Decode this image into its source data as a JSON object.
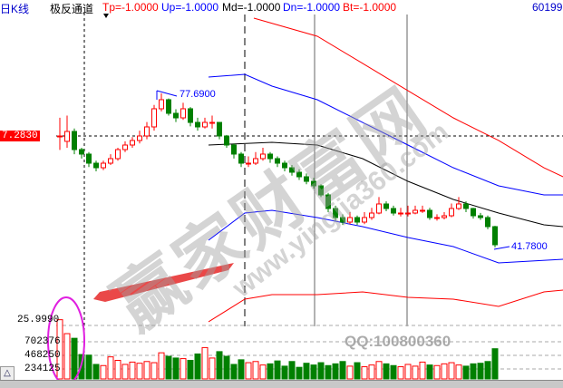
{
  "header": {
    "left_label": "日K线",
    "indicator": "极反通道",
    "tp": "Tp=-1.0000",
    "up": "Up=-1.0000",
    "md": "Md=-1.0000",
    "dn": "Dn=-1.0000",
    "bt": "Bt=-1.0000",
    "code": "60199"
  },
  "colors": {
    "tp": "#ff0000",
    "up": "#0000ff",
    "md": "#000000",
    "dn": "#0000ff",
    "bt": "#ff0000",
    "up_candle": "#ff0000",
    "down_candle": "#008000"
  },
  "price_axis": {
    "cursor_price": "7.2830",
    "bottom_price": "25.9990"
  },
  "annotations": {
    "high": "77.6900",
    "low": "41.7800"
  },
  "volume_axis": {
    "ticks": [
      "702376",
      "468250",
      "234125"
    ]
  },
  "watermark": {
    "brand": "赢家财富网",
    "site": "www.yingjia360.com",
    "qq": "QQ:100800360"
  },
  "toolbar": {
    "toggle_icon": "triangle-up-icon",
    "toggle_label": "△"
  },
  "chart_data": {
    "type": "candlestick",
    "candles": [
      [
        67.75,
        67.75,
        72.0,
        64.5
      ],
      [
        66.5,
        68.81,
        72.5,
        65.0
      ],
      [
        68.81,
        64.58,
        69.5,
        63.5
      ],
      [
        64.58,
        63.53,
        65.0,
        62.5
      ],
      [
        63.53,
        61.41,
        64.0,
        60.5
      ],
      [
        61.41,
        60.35,
        62.0,
        59.5
      ],
      [
        60.35,
        61.41,
        62.0,
        59.8
      ],
      [
        61.41,
        62.47,
        63.5,
        61.0
      ],
      [
        62.47,
        64.58,
        65.0,
        62.0
      ],
      [
        64.58,
        65.64,
        66.5,
        64.0
      ],
      [
        65.64,
        66.7,
        67.5,
        65.0
      ],
      [
        66.7,
        67.75,
        69.0,
        66.0
      ],
      [
        67.75,
        69.87,
        71.0,
        67.0
      ],
      [
        69.87,
        74.1,
        75.0,
        69.0
      ],
      [
        74.1,
        76.21,
        77.69,
        73.5
      ],
      [
        76.21,
        73.04,
        76.5,
        72.5
      ],
      [
        73.04,
        71.98,
        74.0,
        71.0
      ],
      [
        71.98,
        74.1,
        75.5,
        71.5
      ],
      [
        74.1,
        70.92,
        74.5,
        70.0
      ],
      [
        70.92,
        69.87,
        72.0,
        69.0
      ],
      [
        69.87,
        70.92,
        72.0,
        69.5
      ],
      [
        70.92,
        70.92,
        72.5,
        69.5
      ],
      [
        70.92,
        67.75,
        71.0,
        67.0
      ],
      [
        67.75,
        65.64,
        68.0,
        65.0
      ],
      [
        65.64,
        63.53,
        66.0,
        62.5
      ],
      [
        63.53,
        61.41,
        64.0,
        60.5
      ],
      [
        61.41,
        61.41,
        63.0,
        60.5
      ],
      [
        61.41,
        62.47,
        64.0,
        61.0
      ],
      [
        62.47,
        63.53,
        65.0,
        62.0
      ],
      [
        63.53,
        62.47,
        64.0,
        61.5
      ],
      [
        62.47,
        61.41,
        63.0,
        60.5
      ],
      [
        61.41,
        60.35,
        62.0,
        59.5
      ],
      [
        60.35,
        59.3,
        61.0,
        58.5
      ],
      [
        59.3,
        58.24,
        60.0,
        57.5
      ],
      [
        58.24,
        57.18,
        59.0,
        56.5
      ],
      [
        57.18,
        56.13,
        58.0,
        55.5
      ],
      [
        56.13,
        54.01,
        56.5,
        53.5
      ],
      [
        54.01,
        50.84,
        54.5,
        50.0
      ],
      [
        50.84,
        48.73,
        51.5,
        48.0
      ],
      [
        48.73,
        47.67,
        49.5,
        47.0
      ],
      [
        47.67,
        48.73,
        50.0,
        47.2
      ],
      [
        48.73,
        47.67,
        49.2,
        47.0
      ],
      [
        47.67,
        48.73,
        50.0,
        47.2
      ],
      [
        48.73,
        49.78,
        51.0,
        48.2
      ],
      [
        49.78,
        51.9,
        53.5,
        49.5
      ],
      [
        51.9,
        50.84,
        52.5,
        50.2
      ],
      [
        50.84,
        49.78,
        51.5,
        49.2
      ],
      [
        49.78,
        49.78,
        51.0,
        49.0
      ],
      [
        49.78,
        49.78,
        51.5,
        49.0
      ],
      [
        49.78,
        50.42,
        51.5,
        49.5
      ],
      [
        50.42,
        50.42,
        51.5,
        49.8
      ],
      [
        50.42,
        48.73,
        51.0,
        48.2
      ],
      [
        48.73,
        48.73,
        49.5,
        48.0
      ],
      [
        48.73,
        49.15,
        50.0,
        48.3
      ],
      [
        49.15,
        50.84,
        52.0,
        48.8
      ],
      [
        50.84,
        51.9,
        53.5,
        50.5
      ],
      [
        51.9,
        50.84,
        52.5,
        50.0
      ],
      [
        50.84,
        49.15,
        51.0,
        48.5
      ],
      [
        49.15,
        48.73,
        49.8,
        48.2
      ],
      [
        48.73,
        46.61,
        49.2,
        46.0
      ],
      [
        46.61,
        42.38,
        46.8,
        41.78
      ]
    ],
    "volume": [
      1020000,
      780000,
      700000,
      420000,
      410000,
      250000,
      230000,
      380000,
      320000,
      250000,
      290000,
      270000,
      300000,
      280000,
      450000,
      390000,
      360000,
      350000,
      320000,
      430000,
      540000,
      360000,
      470000,
      390000,
      250000,
      330000,
      280000,
      300000,
      240000,
      260000,
      310000,
      220000,
      300000,
      200000,
      270000,
      240000,
      280000,
      230000,
      260000,
      300000,
      220000,
      280000,
      210000,
      240000,
      300000,
      260000,
      230000,
      210000,
      250000,
      220000,
      290000,
      240000,
      230000,
      260000,
      280000,
      240000,
      220000,
      260000,
      270000,
      300000,
      520000
    ],
    "channel": {
      "tp": {
        "x": [
          26.75,
          35.5,
          41.75,
          48,
          54.25,
          60.5,
          66.75,
          69.4
        ],
        "y": [
          95.24,
          91.01,
          84.67,
          78.32,
          71.98,
          66.7,
          60.35,
          58.24
        ]
      },
      "up": {
        "x": [
          20.5,
          25.5,
          29.25,
          35.5,
          41.75,
          48,
          54.25,
          60.5,
          66.75,
          69.4
        ],
        "y": [
          81.5,
          82.13,
          79.38,
          76.21,
          70.92,
          65.64,
          60.35,
          56.13,
          54.01,
          54.01
        ]
      },
      "md": {
        "x": [
          20.5,
          29.25,
          35.5,
          41.75,
          48,
          54.25,
          60.5,
          66.75,
          69.4
        ],
        "y": [
          65.64,
          66.27,
          65.64,
          62.47,
          57.18,
          52.96,
          49.78,
          47.04,
          46.61
        ]
      },
      "dn": {
        "x": [
          20.5,
          25.5,
          29.25,
          35.5,
          41.75,
          48,
          54.25,
          60.5,
          69.4
        ],
        "y": [
          43.44,
          49.78,
          50.42,
          48.73,
          46.61,
          44.08,
          41.96,
          38.16,
          39.0
        ]
      },
      "bt": {
        "x": [
          20.5,
          25.5,
          29.25,
          35.5,
          41.75,
          48,
          54.25,
          60.5,
          66.75,
          69.4
        ],
        "y": [
          24.42,
          29.7,
          30.76,
          30.76,
          31.39,
          30.12,
          29.7,
          28.01,
          31.39,
          31.81
        ]
      }
    }
  }
}
